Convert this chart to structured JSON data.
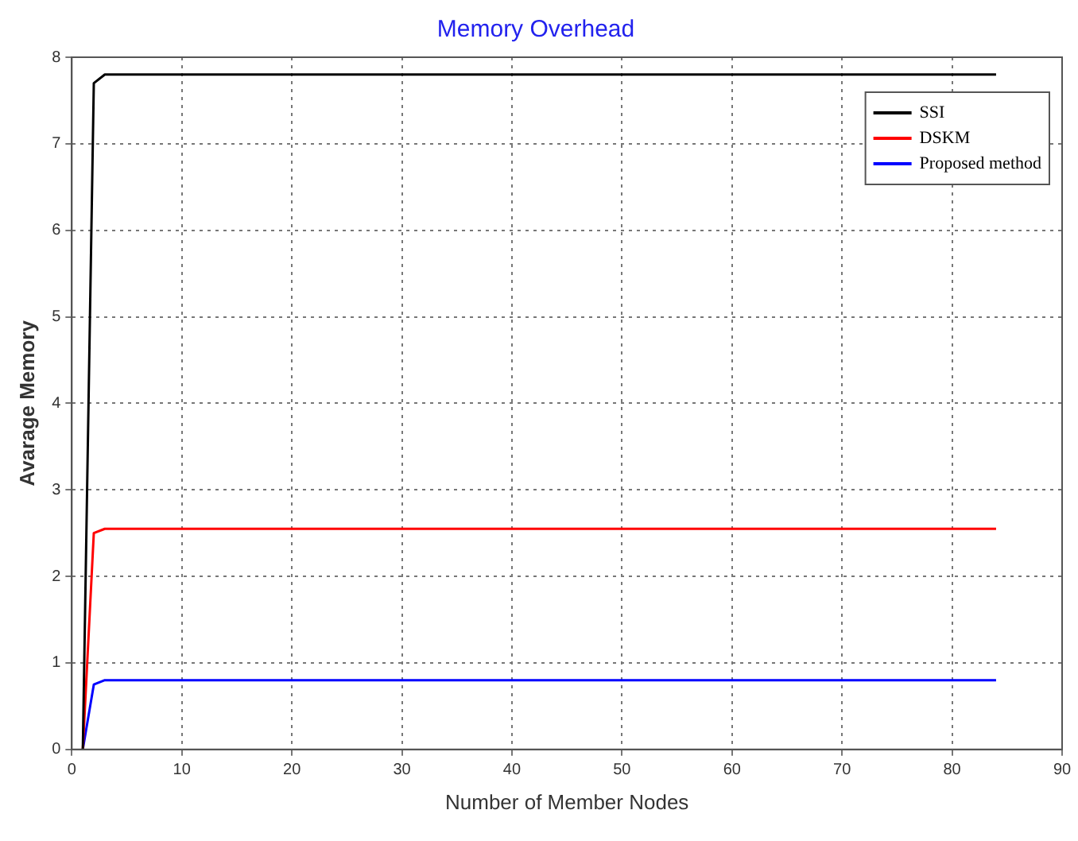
{
  "chart_data": {
    "type": "line",
    "title": "Memory Overhead",
    "xlabel": "Number of Member Nodes",
    "ylabel": "Avarage Memory",
    "xlim": [
      0,
      90
    ],
    "xticks": [
      0,
      10,
      20,
      30,
      40,
      50,
      60,
      70,
      80,
      90
    ],
    "ylim": [
      0,
      8
    ],
    "yticks": [
      0,
      1,
      2,
      3,
      4,
      5,
      6,
      7,
      8
    ],
    "grid": true,
    "legend": "top right",
    "line_style": "solid",
    "marker": "none",
    "series": [
      {
        "name": "SSI",
        "color": "#000000",
        "x": [
          1,
          2,
          3,
          84
        ],
        "values": [
          0,
          7.7,
          7.8,
          7.8
        ]
      },
      {
        "name": "DSKM",
        "color": "#ff0000",
        "x": [
          1,
          2,
          3,
          84
        ],
        "values": [
          0,
          2.5,
          2.55,
          2.55
        ]
      },
      {
        "name": "Proposed method",
        "color": "#0000ff",
        "x": [
          1,
          2,
          3,
          84
        ],
        "values": [
          0,
          0.75,
          0.8,
          0.8
        ]
      }
    ]
  }
}
